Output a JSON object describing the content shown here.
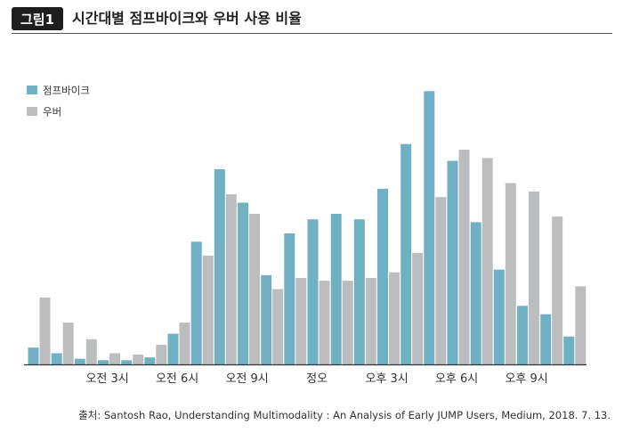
{
  "header": {
    "figure_label": "그림1",
    "title": "시간대별 점프바이크와 우버 사용 비율"
  },
  "source": "출처: Santosh Rao, Understanding Multimodality : An Analysis of Early JUMP Users, Medium, 2018. 7. 13.",
  "colors": {
    "jump": "#6fb1c3",
    "uber": "#bcbdbf"
  },
  "chart_data": {
    "type": "bar",
    "title": "시간대별 점프바이크와 우버 사용 비율",
    "categories": [
      "0",
      "1",
      "2",
      "3",
      "4",
      "5",
      "6",
      "7",
      "8",
      "9",
      "10",
      "11",
      "12",
      "13",
      "14",
      "15",
      "16",
      "17",
      "18",
      "19",
      "20",
      "21",
      "22",
      "23"
    ],
    "tick_labels": [
      {
        "index": 3,
        "label": "오전 3시"
      },
      {
        "index": 6,
        "label": "오전 6시"
      },
      {
        "index": 9,
        "label": "오전 9시"
      },
      {
        "index": 12,
        "label": "정오"
      },
      {
        "index": 15,
        "label": "오후 3시"
      },
      {
        "index": 18,
        "label": "오후 6시"
      },
      {
        "index": 21,
        "label": "오후 9시"
      }
    ],
    "series": [
      {
        "name": "점프바이크",
        "color": "#6fb1c3",
        "values": [
          6,
          4,
          2,
          1.5,
          1.5,
          2.5,
          11,
          44,
          70,
          58,
          32,
          47,
          52,
          54,
          52,
          63,
          79,
          98,
          73,
          51,
          34,
          21,
          18,
          10
        ]
      },
      {
        "name": "우버",
        "color": "#bcbdbf",
        "values": [
          24,
          15,
          9,
          4,
          3.5,
          7,
          15,
          39,
          61,
          54,
          27,
          31,
          30,
          30,
          31,
          33,
          40,
          60,
          77,
          74,
          65,
          62,
          53,
          28
        ]
      }
    ],
    "ylim": [
      0,
      100
    ],
    "legend_position": "top-left",
    "grid": false
  }
}
